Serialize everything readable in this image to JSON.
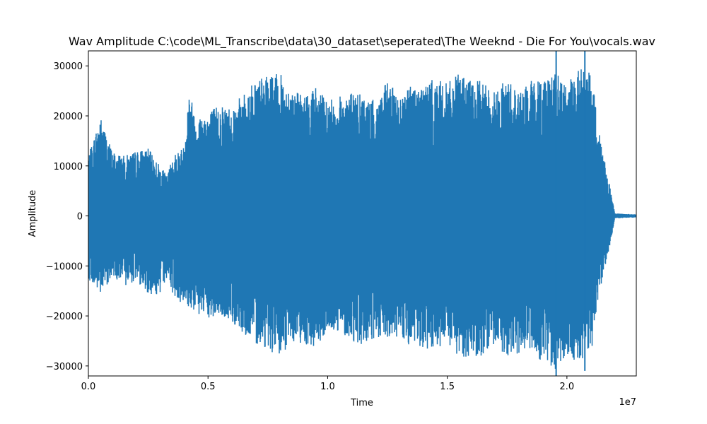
{
  "chart_data": {
    "type": "line",
    "title": "Wav Amplitude C:\\code\\ML_Transcribe\\data\\30_dataset\\seperated\\The Weeknd - Die For You\\vocals.wav",
    "xlabel": "Time",
    "ylabel": "Amplitude",
    "x_offset_label": "1e7",
    "xlim": [
      0,
      22900000
    ],
    "ylim": [
      -32000,
      33000
    ],
    "x_ticks": [
      0,
      5000000,
      10000000,
      15000000,
      20000000
    ],
    "x_tick_labels": [
      "0.0",
      "0.5",
      "1.0",
      "1.5",
      "2.0"
    ],
    "y_ticks": [
      -30000,
      -20000,
      -10000,
      0,
      10000,
      20000,
      30000
    ],
    "y_tick_labels": [
      "−30000",
      "−20000",
      "−10000",
      "0",
      "10000",
      "20000",
      "30000"
    ],
    "grid": false,
    "series": [
      {
        "color": "#1f77b4",
        "envelope_x": [
          0,
          500000,
          1000000,
          1500000,
          2000000,
          2500000,
          3000000,
          3300000,
          3500000,
          4000000,
          4200000,
          4500000,
          5000000,
          5500000,
          6000000,
          6500000,
          7000000,
          7500000,
          8000000,
          8500000,
          9000000,
          9500000,
          10000000,
          10500000,
          11000000,
          11500000,
          12000000,
          12500000,
          13000000,
          13500000,
          14000000,
          14500000,
          15000000,
          15500000,
          16000000,
          16500000,
          17000000,
          17500000,
          18000000,
          18500000,
          19000000,
          19500000,
          20000000,
          20500000,
          21000000,
          21500000,
          21800000,
          22000000,
          22900000
        ],
        "envelope_upper": [
          12000,
          20000,
          13000,
          12000,
          13000,
          13500,
          10000,
          8000,
          12000,
          14000,
          25500,
          20000,
          21000,
          22500,
          22000,
          24500,
          27500,
          28000,
          28500,
          25500,
          24000,
          26000,
          23000,
          24000,
          25000,
          24000,
          23000,
          27000,
          24000,
          26500,
          26500,
          27500,
          26500,
          28500,
          27000,
          27000,
          25000,
          27500,
          25000,
          27000,
          28000,
          29000,
          26000,
          30000,
          28500,
          13000,
          6000,
          500,
          300
        ],
        "envelope_lower": [
          -12500,
          -16000,
          -12000,
          -14000,
          -13000,
          -15500,
          -16000,
          -12000,
          -15500,
          -18000,
          -18500,
          -19500,
          -21000,
          -20000,
          -21500,
          -23500,
          -25500,
          -26500,
          -29000,
          -25000,
          -25500,
          -26500,
          -23500,
          -23000,
          -25000,
          -26000,
          -25000,
          -25000,
          -24000,
          -26500,
          -27000,
          -27500,
          -26000,
          -28500,
          -28000,
          -28000,
          -26000,
          -28000,
          -27500,
          -27000,
          -29500,
          -31000,
          -27500,
          -30000,
          -28000,
          -12000,
          -6000,
          -500,
          -300
        ],
        "spikes": [
          {
            "x": 19550000,
            "y": 33000
          },
          {
            "x": 19550000,
            "y": -32000
          },
          {
            "x": 20750000,
            "y": 33000
          },
          {
            "x": 20750000,
            "y": -31000
          }
        ]
      }
    ]
  }
}
